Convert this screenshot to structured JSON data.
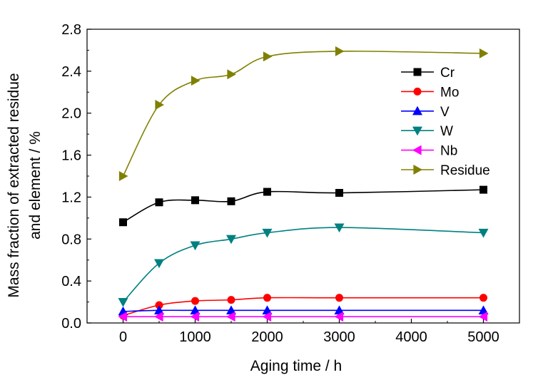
{
  "chart_data": {
    "type": "line",
    "xlabel": "Aging time / h",
    "ylabel_lines": [
      "Mass fraction of extracted residue",
      "and element / %"
    ],
    "xlim": [
      -500,
      5500
    ],
    "ylim": [
      0,
      2.8
    ],
    "xticks": [
      0,
      1000,
      2000,
      3000,
      4000,
      5000
    ],
    "yticks": [
      0.0,
      0.4,
      0.8,
      1.2,
      1.6,
      2.0,
      2.4,
      2.8
    ],
    "xtick_labels": [
      "0",
      "1000",
      "2000",
      "3000",
      "4000",
      "5000"
    ],
    "ytick_labels": [
      "0.0",
      "0.4",
      "0.8",
      "1.2",
      "1.6",
      "2.0",
      "2.4",
      "2.8"
    ],
    "grid": false,
    "legend_position": "top-right",
    "x": [
      0,
      500,
      1000,
      1500,
      2000,
      3000,
      5000
    ],
    "series": [
      {
        "name": "Cr",
        "color": "#000000",
        "marker": "square",
        "values": [
          0.96,
          1.15,
          1.17,
          1.16,
          1.25,
          1.24,
          1.27
        ]
      },
      {
        "name": "Mo",
        "color": "#ff0000",
        "marker": "circle",
        "values": [
          0.07,
          0.17,
          0.21,
          0.22,
          0.24,
          0.24,
          0.24
        ]
      },
      {
        "name": "V",
        "color": "#0000ff",
        "marker": "triangle-up",
        "values": [
          0.11,
          0.12,
          0.12,
          0.12,
          0.12,
          0.12,
          0.12
        ]
      },
      {
        "name": "W",
        "color": "#008080",
        "marker": "triangle-down",
        "values": [
          0.2,
          0.57,
          0.74,
          0.8,
          0.86,
          0.91,
          0.86
        ]
      },
      {
        "name": "Nb",
        "color": "#ff00ff",
        "marker": "triangle-left",
        "values": [
          0.06,
          0.06,
          0.06,
          0.06,
          0.06,
          0.06,
          0.06
        ]
      },
      {
        "name": "Residue",
        "color": "#808000",
        "marker": "triangle-right",
        "values": [
          1.4,
          2.08,
          2.31,
          2.37,
          2.54,
          2.59,
          2.57
        ]
      }
    ]
  }
}
